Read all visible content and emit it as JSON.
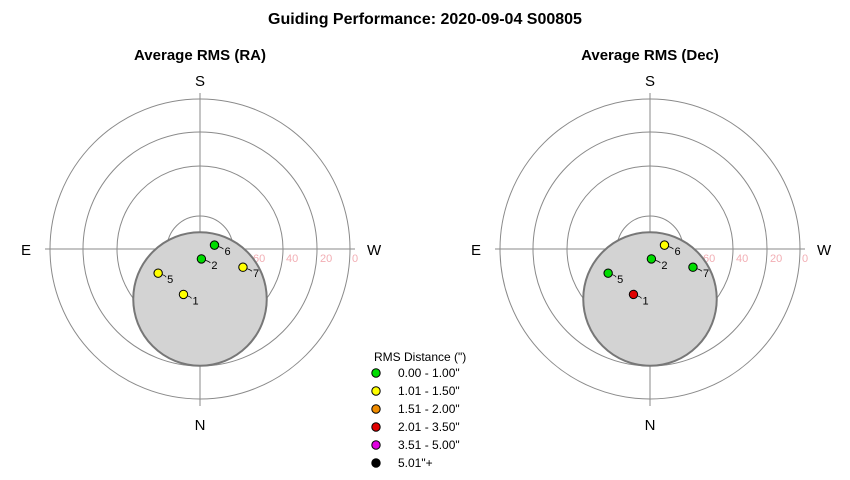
{
  "title": "Guiding Performance: 2020-09-04 S00805",
  "colors": {
    "ring": "#8a8a8a",
    "moon_fill": "#d3d3d3",
    "moon_stroke": "#777777",
    "altitude_label": "#f2aeb4"
  },
  "chart_data": [
    {
      "type": "scatter",
      "projection": "polar-sky",
      "title": "Average RMS (RA)",
      "directions": {
        "top": "S",
        "bottom": "N",
        "left": "E",
        "right": "W"
      },
      "altitude_ticks": [
        "60",
        "40",
        "20",
        "0"
      ],
      "points": [
        {
          "label": "1",
          "az_deg": 200,
          "alt_deg": 61,
          "rms_class": 1
        },
        {
          "label": "2",
          "az_deg": 172,
          "alt_deg": 84,
          "rms_class": 0
        },
        {
          "label": "5",
          "az_deg": 240,
          "alt_deg": 61,
          "rms_class": 1
        },
        {
          "label": "6",
          "az_deg": 75,
          "alt_deg": 81,
          "rms_class": 0
        },
        {
          "label": "7",
          "az_deg": 113,
          "alt_deg": 62,
          "rms_class": 1
        }
      ],
      "obstruction": {
        "az_deg": 0,
        "alt_deg": 60,
        "radius_deg": 15
      }
    },
    {
      "type": "scatter",
      "projection": "polar-sky",
      "title": "Average RMS (Dec)",
      "directions": {
        "top": "S",
        "bottom": "N",
        "left": "E",
        "right": "W"
      },
      "altitude_ticks": [
        "60",
        "40",
        "20",
        "0"
      ],
      "points": [
        {
          "label": "1",
          "az_deg": 200,
          "alt_deg": 61,
          "rms_class": 3
        },
        {
          "label": "2",
          "az_deg": 172,
          "alt_deg": 84,
          "rms_class": 0
        },
        {
          "label": "5",
          "az_deg": 240,
          "alt_deg": 61,
          "rms_class": 0
        },
        {
          "label": "6",
          "az_deg": 75,
          "alt_deg": 81,
          "rms_class": 1
        },
        {
          "label": "7",
          "az_deg": 113,
          "alt_deg": 62,
          "rms_class": 0
        }
      ],
      "obstruction": {
        "az_deg": 0,
        "alt_deg": 60,
        "radius_deg": 15
      }
    }
  ],
  "legend": {
    "title": "RMS Distance (\")",
    "items": [
      {
        "label": "0.00 - 1.00\"",
        "color": "#00dd00"
      },
      {
        "label": "1.01 - 1.50\"",
        "color": "#ffff00"
      },
      {
        "label": "1.51 - 2.00\"",
        "color": "#f08c00"
      },
      {
        "label": "2.01 - 3.50\"",
        "color": "#e00000"
      },
      {
        "label": "3.51 - 5.00\"",
        "color": "#e000e0"
      },
      {
        "label": "5.01\"+",
        "color": "#000000"
      }
    ]
  }
}
